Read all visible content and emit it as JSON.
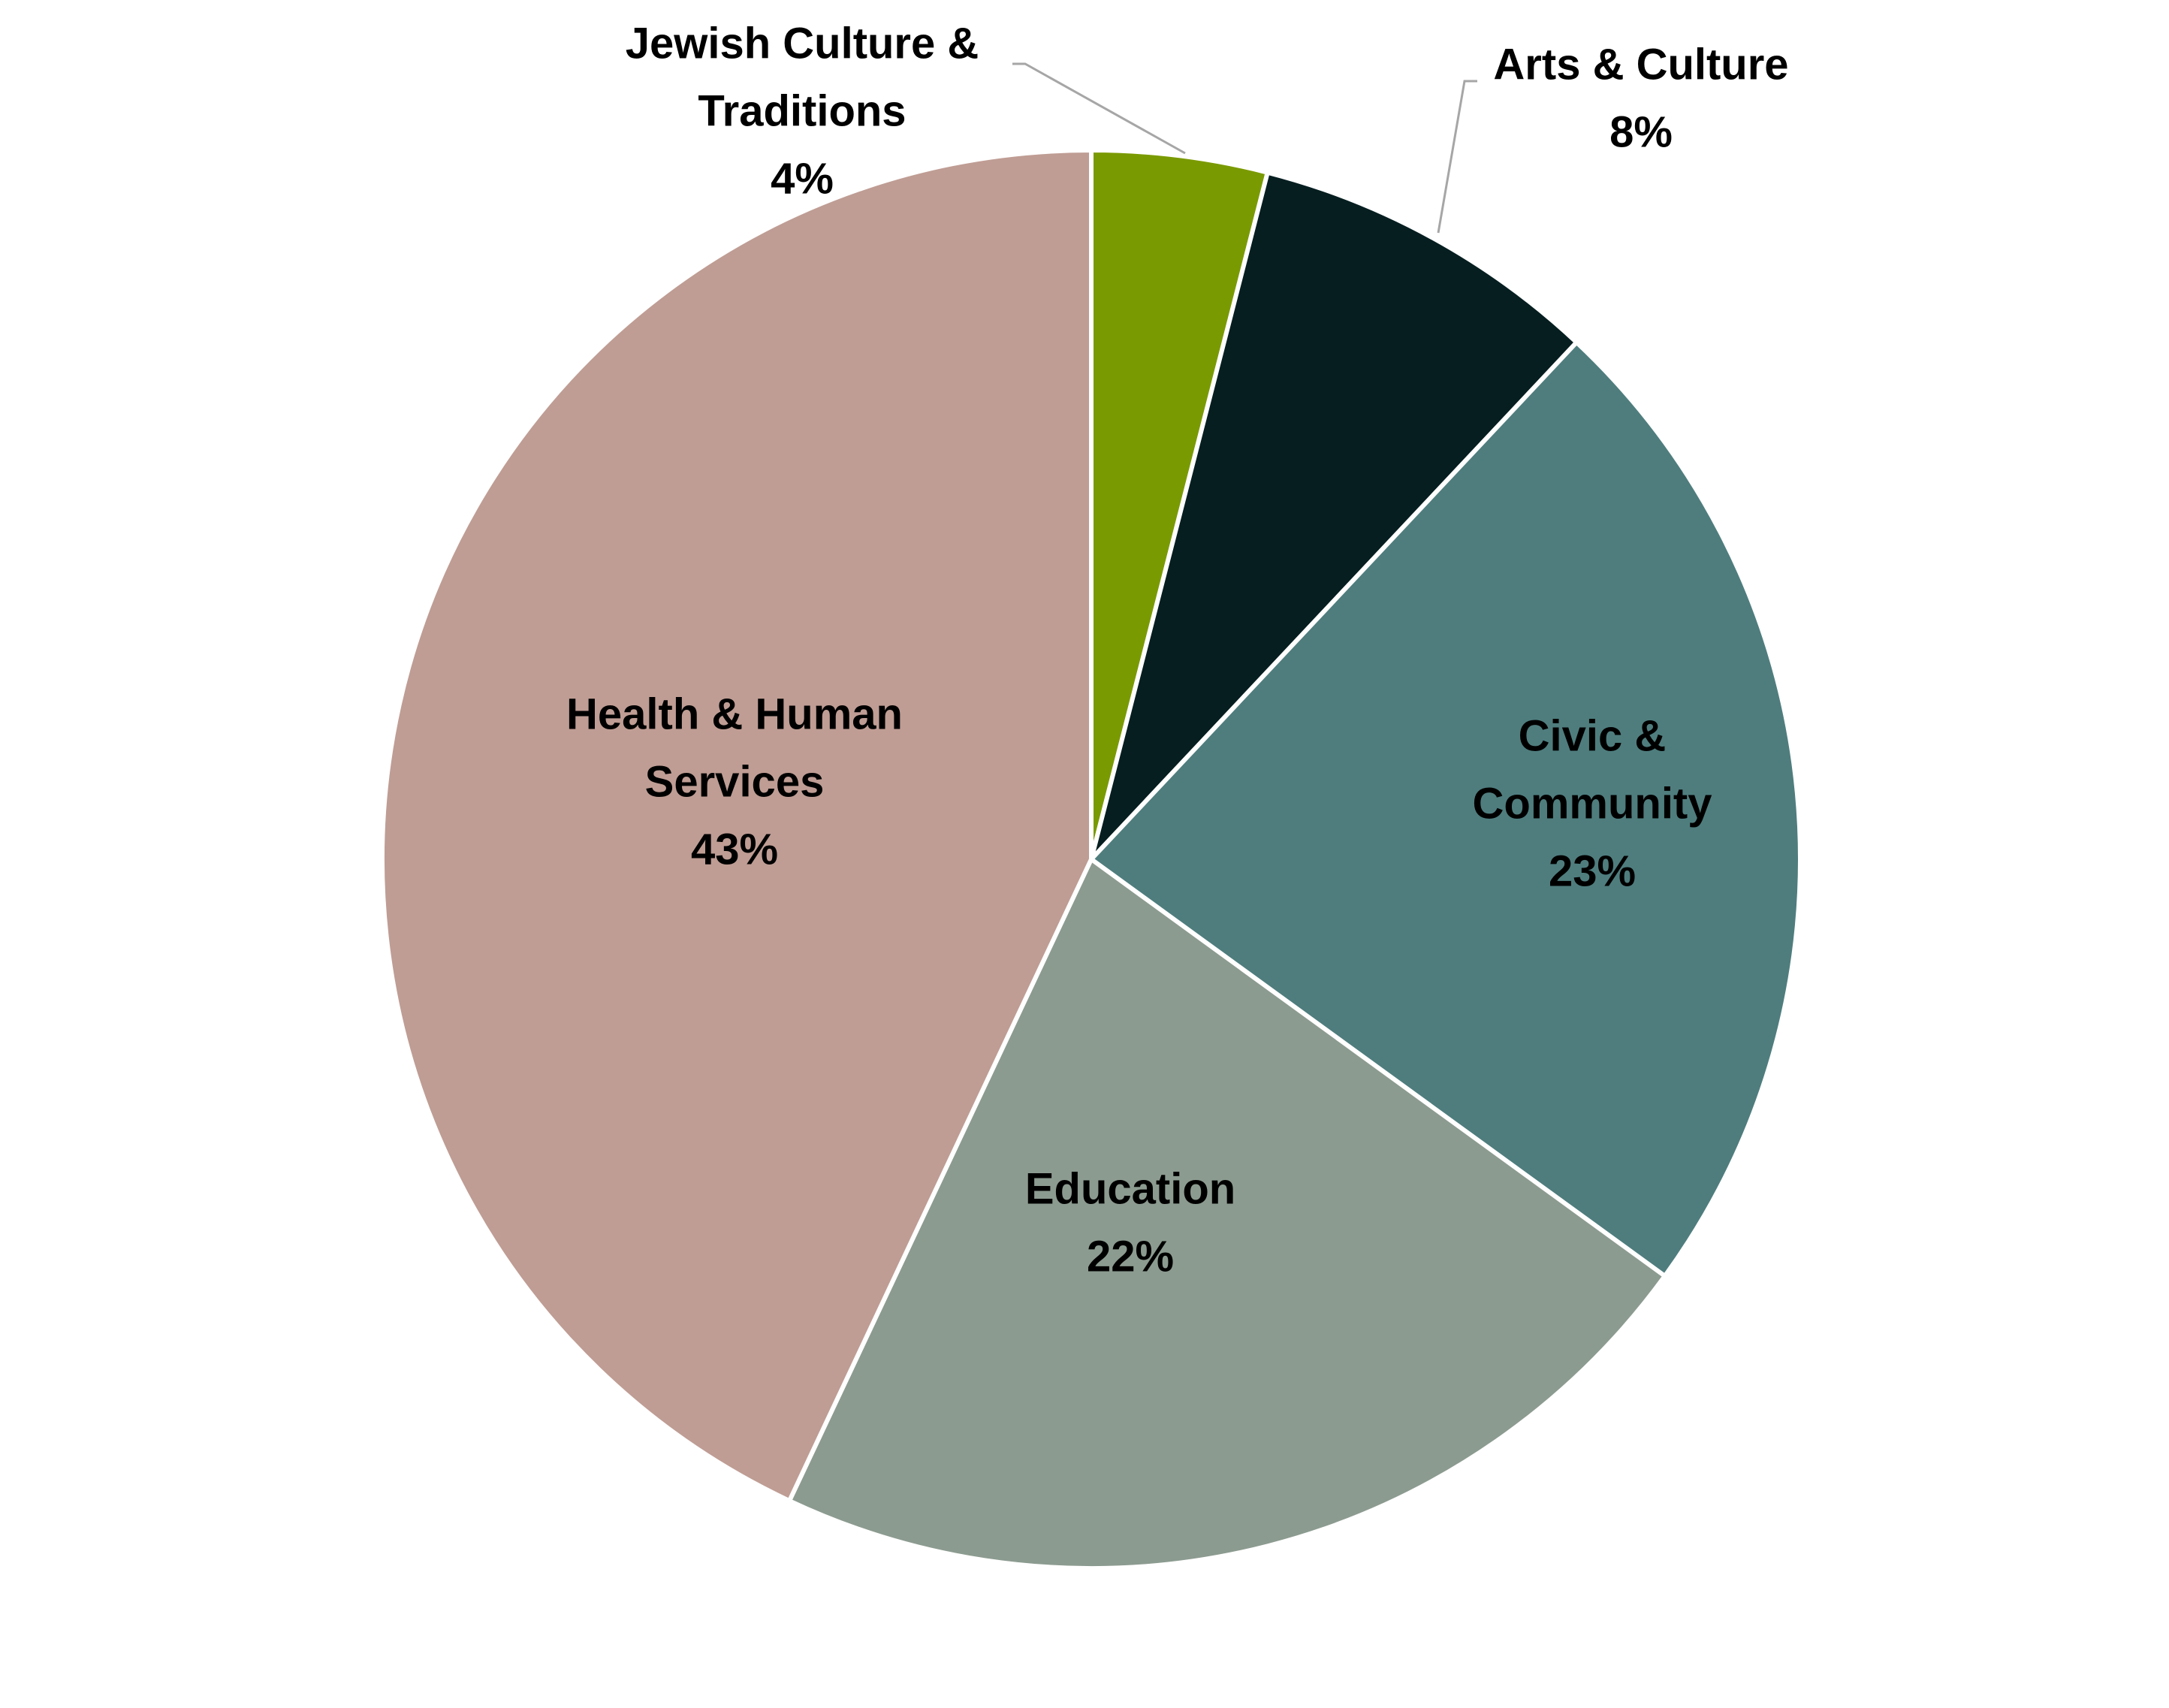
{
  "chart_data": {
    "type": "pie",
    "title": "",
    "slices": [
      {
        "label": "Jewish Culture & Traditions",
        "value": 4,
        "value_label": "4%",
        "color": "#7A9A01"
      },
      {
        "label": "Arts & Culture",
        "value": 8,
        "value_label": "8%",
        "color": "#061E20"
      },
      {
        "label": "Civic & Community",
        "value": 23,
        "value_label": "23%",
        "color": "#4F7D7E"
      },
      {
        "label": "Education",
        "value": 22,
        "value_label": "22%",
        "color": "#8C9B90"
      },
      {
        "label": "Health & Human Services",
        "value": 43,
        "value_label": "43%",
        "color": "#BF9D94"
      }
    ],
    "unit": "%",
    "start_angle": "12 o'clock",
    "direction": "clockwise",
    "slice_border_color": "#FFFFFF",
    "leader_line_color": "#A6A6A6"
  }
}
